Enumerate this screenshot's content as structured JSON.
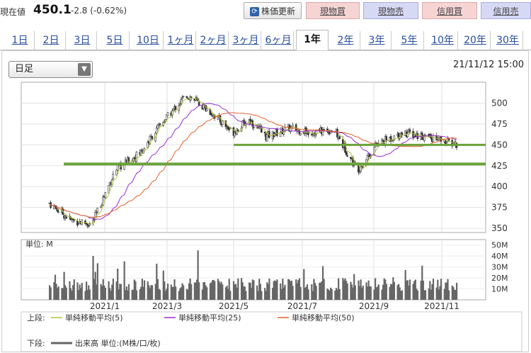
{
  "header": {
    "price_label": "現在値",
    "price": "450.1",
    "change": "-2.8 (-0.62%)",
    "update_button": "株価更新",
    "update_icon": "refresh-icon",
    "buttons": [
      {
        "label": "現物買",
        "kind": "buy"
      },
      {
        "label": "現物売",
        "kind": "sell"
      },
      {
        "label": "信用買",
        "kind": "buy"
      },
      {
        "label": "信用売",
        "kind": "sell"
      }
    ]
  },
  "period_tabs": [
    "1日",
    "2日",
    "3日",
    "5日",
    "10日",
    "1ヶ月",
    "2ヶ月",
    "3ヶ月",
    "6ヶ月",
    "1年",
    "2年",
    "3年",
    "5年",
    "10年",
    "20年",
    "30年"
  ],
  "active_tab": "1年",
  "chart_controls": {
    "interval_select": "日足",
    "timestamp": "21/11/12 15:00"
  },
  "chart_data": {
    "type": "candlestick",
    "price_axis": {
      "ticks": [
        350,
        375,
        400,
        425,
        450,
        475,
        500
      ],
      "range": [
        345,
        525
      ]
    },
    "volume_axis": {
      "label": "単位: M",
      "ticks": [
        "10M",
        "20M",
        "30M",
        "40M",
        "50M"
      ],
      "range": [
        0,
        55
      ]
    },
    "x_ticks": [
      "2021/1",
      "2021/3",
      "2021/5",
      "2021/7",
      "2021/9",
      "2021/11"
    ],
    "support_lines": [
      450,
      427
    ],
    "price_path_monthly": [
      {
        "date": "2020-11-12",
        "close": 380
      },
      {
        "date": "2020-12-01",
        "close": 360
      },
      {
        "date": "2020-12-20",
        "close": 355
      },
      {
        "date": "2021-01-10",
        "close": 420
      },
      {
        "date": "2021-02-01",
        "close": 440
      },
      {
        "date": "2021-02-20",
        "close": 475
      },
      {
        "date": "2021-03-15",
        "close": 510
      },
      {
        "date": "2021-04-05",
        "close": 490
      },
      {
        "date": "2021-04-25",
        "close": 465
      },
      {
        "date": "2021-05-10",
        "close": 480
      },
      {
        "date": "2021-05-25",
        "close": 460
      },
      {
        "date": "2021-06-15",
        "close": 470
      },
      {
        "date": "2021-07-05",
        "close": 465
      },
      {
        "date": "2021-07-25",
        "close": 468
      },
      {
        "date": "2021-08-15",
        "close": 420
      },
      {
        "date": "2021-09-01",
        "close": 450
      },
      {
        "date": "2021-09-25",
        "close": 465
      },
      {
        "date": "2021-10-15",
        "close": 460
      },
      {
        "date": "2021-11-12",
        "close": 450
      }
    ],
    "legend": {
      "upper_label": "上段:",
      "lower_label": "下段:",
      "series": [
        {
          "name": "単純移動平均(5)",
          "color": "#b6c23a"
        },
        {
          "name": "単純移動平均(25)",
          "color": "#9b2fd0"
        },
        {
          "name": "単純移動平均(50)",
          "color": "#e0602a"
        }
      ],
      "volume": {
        "name": "出来高 単位:(M株/口/枚)",
        "color": "#666666"
      }
    }
  }
}
